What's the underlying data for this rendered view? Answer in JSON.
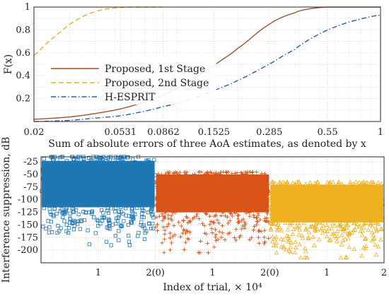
{
  "chart_data": [
    {
      "type": "line",
      "xscale": "log",
      "xlim": [
        0.02,
        1
      ],
      "ylim": [
        0,
        1
      ],
      "xticks": [
        "0.02",
        "0.0531",
        "0.0862",
        "0.1525",
        "0.285",
        "0.55",
        "1"
      ],
      "xtick_values": [
        0.02,
        0.0531,
        0.0862,
        0.1525,
        0.285,
        0.55,
        1
      ],
      "yticks": [
        "0.2",
        "0.4",
        "0.6",
        "0.8",
        "1"
      ],
      "ytick_values": [
        0.2,
        0.4,
        0.6,
        0.8,
        1
      ],
      "xlabel": "Sum of absolute errors of three AoA estimates, as denoted by x",
      "ylabel": "F(x)",
      "grid": true,
      "legend_position": "center-left",
      "series": [
        {
          "name": "Proposed, 1st Stage",
          "color": "#a0522d",
          "dash": "solid",
          "x": [
            0.02,
            0.03,
            0.04,
            0.053,
            0.07,
            0.086,
            0.11,
            0.1525,
            0.2,
            0.285,
            0.38,
            0.45,
            0.55,
            0.7,
            1
          ],
          "y": [
            0.02,
            0.04,
            0.07,
            0.11,
            0.17,
            0.23,
            0.33,
            0.49,
            0.64,
            0.85,
            0.95,
            0.985,
            1.0,
            1.0,
            1.0
          ]
        },
        {
          "name": "Proposed, 2nd Stage",
          "color": "#e6b422",
          "dash": "dashed",
          "x": [
            0.02,
            0.023,
            0.026,
            0.03,
            0.035,
            0.04,
            0.046,
            0.053,
            0.062,
            0.072,
            0.085
          ],
          "y": [
            0.58,
            0.68,
            0.76,
            0.85,
            0.92,
            0.96,
            0.985,
            0.995,
            1.0,
            1.0,
            1.0
          ]
        },
        {
          "name": "H-ESPRIT",
          "color": "#1f5fb0",
          "dash": "dashdot",
          "x": [
            0.02,
            0.03,
            0.04,
            0.053,
            0.07,
            0.086,
            0.11,
            0.1525,
            0.2,
            0.285,
            0.38,
            0.45,
            0.55,
            0.7,
            1
          ],
          "y": [
            0.0,
            0.01,
            0.03,
            0.05,
            0.09,
            0.13,
            0.18,
            0.27,
            0.36,
            0.5,
            0.63,
            0.72,
            0.8,
            0.87,
            0.93
          ]
        }
      ]
    },
    {
      "type": "scatter",
      "xlabel": "Index of trial, × 10⁴",
      "ylabel": "Interference suppression, dB",
      "ylim": [
        -225,
        -15
      ],
      "yticks": [
        "-25",
        "-50",
        "-75",
        "-100",
        "-125",
        "-150",
        "-175",
        "-200"
      ],
      "ytick_values": [
        -25,
        -50,
        -75,
        -100,
        -125,
        -150,
        -175,
        -200
      ],
      "xticks": [
        "1",
        "2(0)",
        "1",
        "2(0)",
        "1",
        "2"
      ],
      "xtick_values": [
        1,
        2,
        3,
        4,
        5,
        6
      ],
      "xlim": [
        0,
        6
      ],
      "grid": true,
      "series": [
        {
          "color": "#1f77b4",
          "marker": "square",
          "x_range": [
            0,
            2
          ],
          "dense_band": [
            -115,
            -23
          ],
          "spread": [
            -190,
            -15
          ]
        },
        {
          "color": "#d95319",
          "marker": "plus",
          "x_range": [
            2,
            4
          ],
          "dense_band": [
            -125,
            -50
          ],
          "spread": [
            -205,
            -45
          ]
        },
        {
          "color": "#edb120",
          "marker": "triangle",
          "x_range": [
            4,
            6
          ],
          "dense_band": [
            -145,
            -70
          ],
          "spread": [
            -215,
            -65
          ]
        }
      ]
    }
  ]
}
